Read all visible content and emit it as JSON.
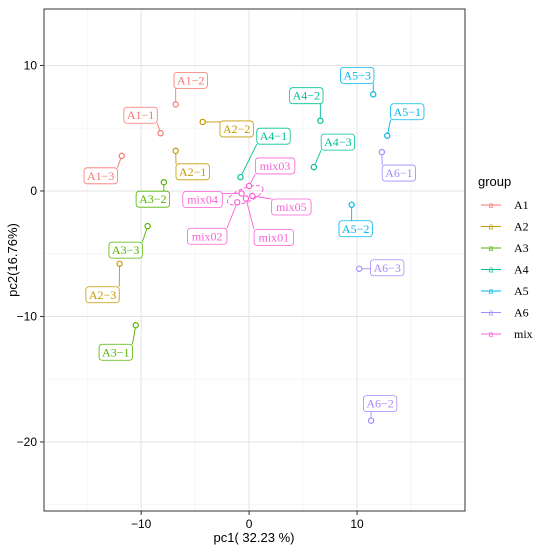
{
  "chart_data": {
    "type": "scatter",
    "xlabel": "pc1( 32.23 %)",
    "ylabel": "pc2(16.76%)",
    "xlim": [
      -19,
      20
    ],
    "ylim": [
      -25.5,
      14.5
    ],
    "x_ticks": [
      -10,
      0,
      10
    ],
    "y_ticks": [
      -20,
      -10,
      0,
      10
    ],
    "grid": true,
    "legend_title": "group",
    "legend_position": "right",
    "legend_glyph": "a",
    "groups": [
      {
        "name": "A1",
        "color": "#F8766D"
      },
      {
        "name": "A2",
        "color": "#C49A00"
      },
      {
        "name": "A3",
        "color": "#53B400"
      },
      {
        "name": "A4",
        "color": "#00C094"
      },
      {
        "name": "A5",
        "color": "#00B6EB"
      },
      {
        "name": "A6",
        "color": "#A58AFF"
      },
      {
        "name": "mix",
        "color": "#FB61D7"
      }
    ],
    "points": [
      {
        "label": "A1−1",
        "group": "A1",
        "x": -8.2,
        "y": 4.6
      },
      {
        "label": "A1−2",
        "group": "A1",
        "x": -6.8,
        "y": 6.9
      },
      {
        "label": "A1−3",
        "group": "A1",
        "x": -11.8,
        "y": 2.8
      },
      {
        "label": "A2−1",
        "group": "A2",
        "x": -6.8,
        "y": 3.2
      },
      {
        "label": "A2−2",
        "group": "A2",
        "x": -4.3,
        "y": 5.5
      },
      {
        "label": "A2−3",
        "group": "A2",
        "x": -12.0,
        "y": -5.8
      },
      {
        "label": "A3−1",
        "group": "A3",
        "x": -10.5,
        "y": -10.7
      },
      {
        "label": "A3−2",
        "group": "A3",
        "x": -7.9,
        "y": 0.7
      },
      {
        "label": "A3−3",
        "group": "A3",
        "x": -9.4,
        "y": -2.8
      },
      {
        "label": "A4−1",
        "group": "A4",
        "x": -0.8,
        "y": 1.1
      },
      {
        "label": "A4−2",
        "group": "A4",
        "x": 6.6,
        "y": 5.6
      },
      {
        "label": "A4−3",
        "group": "A4",
        "x": 6.0,
        "y": 1.9
      },
      {
        "label": "A5−1",
        "group": "A5",
        "x": 12.8,
        "y": 4.4
      },
      {
        "label": "A5−2",
        "group": "A5",
        "x": 9.5,
        "y": -1.1
      },
      {
        "label": "A5−3",
        "group": "A5",
        "x": 11.5,
        "y": 7.7
      },
      {
        "label": "A6−1",
        "group": "A6",
        "x": 12.3,
        "y": 3.1
      },
      {
        "label": "A6−2",
        "group": "A6",
        "x": 11.3,
        "y": -18.3
      },
      {
        "label": "A6−3",
        "group": "A6",
        "x": 10.2,
        "y": -6.2
      },
      {
        "label": "mix01",
        "group": "mix",
        "x": -0.3,
        "y": -0.6
      },
      {
        "label": "mix02",
        "group": "mix",
        "x": -1.1,
        "y": -0.9
      },
      {
        "label": "mix03",
        "group": "mix",
        "x": 0.0,
        "y": 0.4
      },
      {
        "label": "mix04",
        "group": "mix",
        "x": -0.7,
        "y": -0.2
      },
      {
        "label": "mix05",
        "group": "mix",
        "x": 0.3,
        "y": -0.4
      }
    ]
  }
}
